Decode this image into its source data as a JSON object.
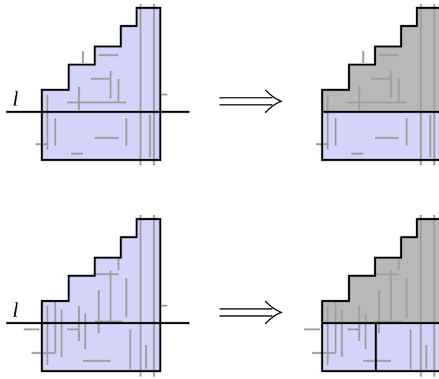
{
  "panels": [
    {
      "label": "l"
    },
    {
      "label": "l"
    }
  ]
}
